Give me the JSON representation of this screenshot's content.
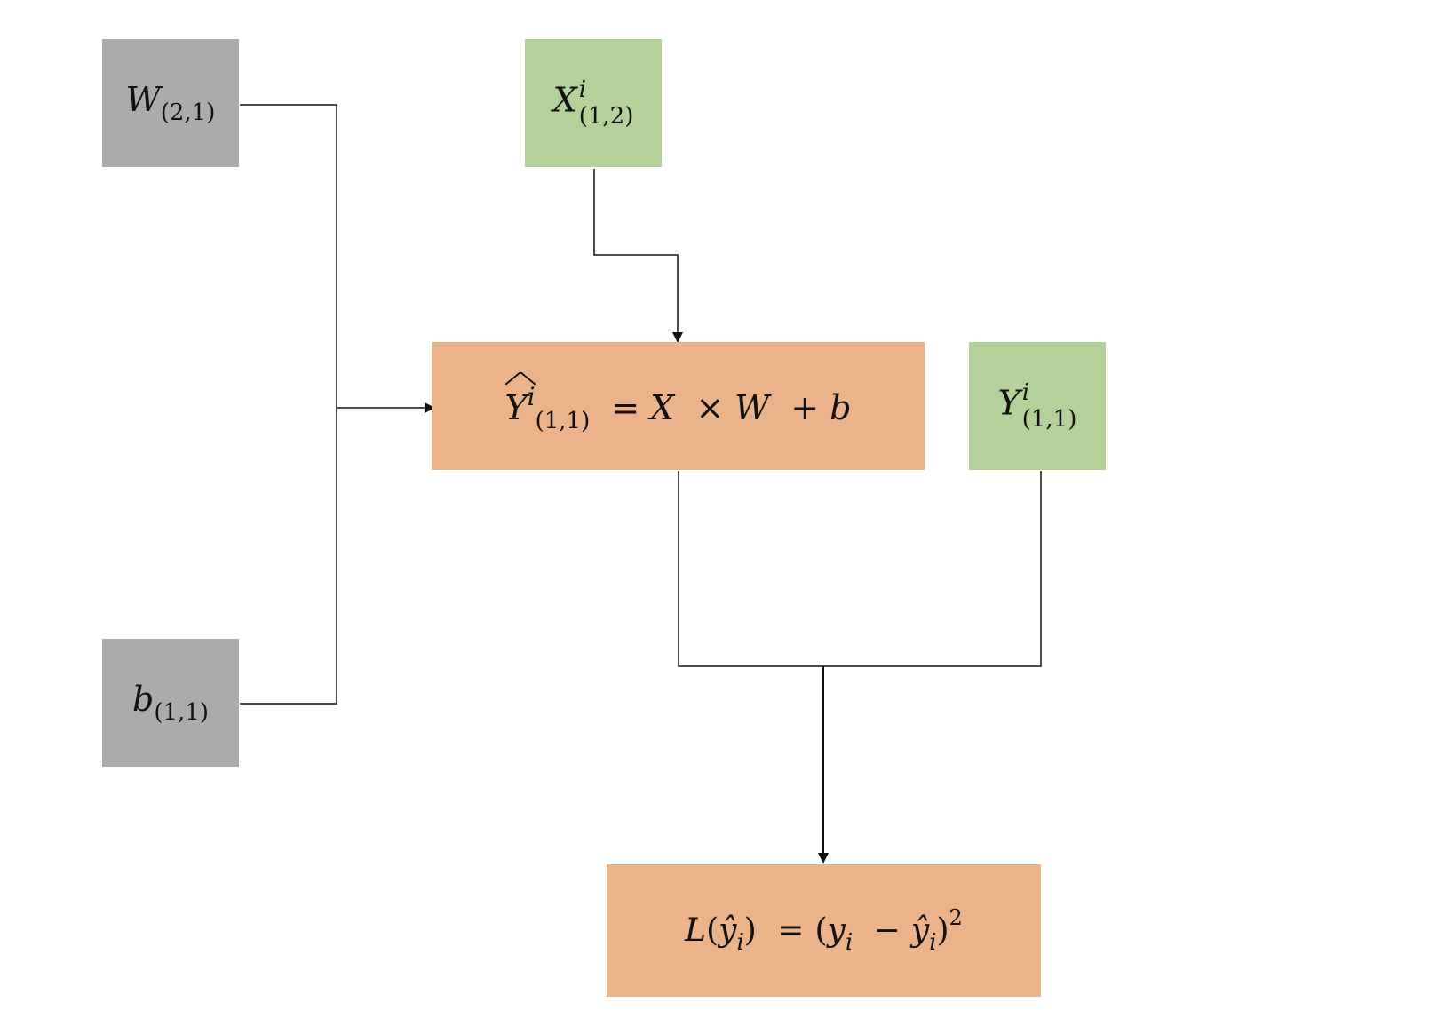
{
  "colors": {
    "param": "#ababab",
    "input": "#b3d198",
    "compute": "#eab38a",
    "line": "#111111"
  },
  "nodes": {
    "w": {
      "symbol": "W",
      "sub": "(2,1)"
    },
    "b": {
      "symbol": "b",
      "sub": "(1,1)"
    },
    "x": {
      "symbol": "X",
      "sup": "i",
      "sub": "(1,2)"
    },
    "y": {
      "symbol": "Y",
      "sup": "i",
      "sub": "(1,1)"
    },
    "yhat": {
      "symbol": "Y",
      "sup": "i",
      "sub": "(1,1)",
      "eq": "=",
      "x": "X",
      "times": "×",
      "w": "W",
      "plus": "+",
      "b": "b"
    },
    "loss": {
      "l": "L",
      "open1": "(",
      "yhat1": "ŷ",
      "i1": "i",
      "close1": ")",
      "eq": "=",
      "open2": "(",
      "y": "y",
      "i2": "i",
      "minus": "−",
      "yhat2": "ŷ",
      "i3": "i",
      "close2": ")",
      "power": "2"
    }
  }
}
